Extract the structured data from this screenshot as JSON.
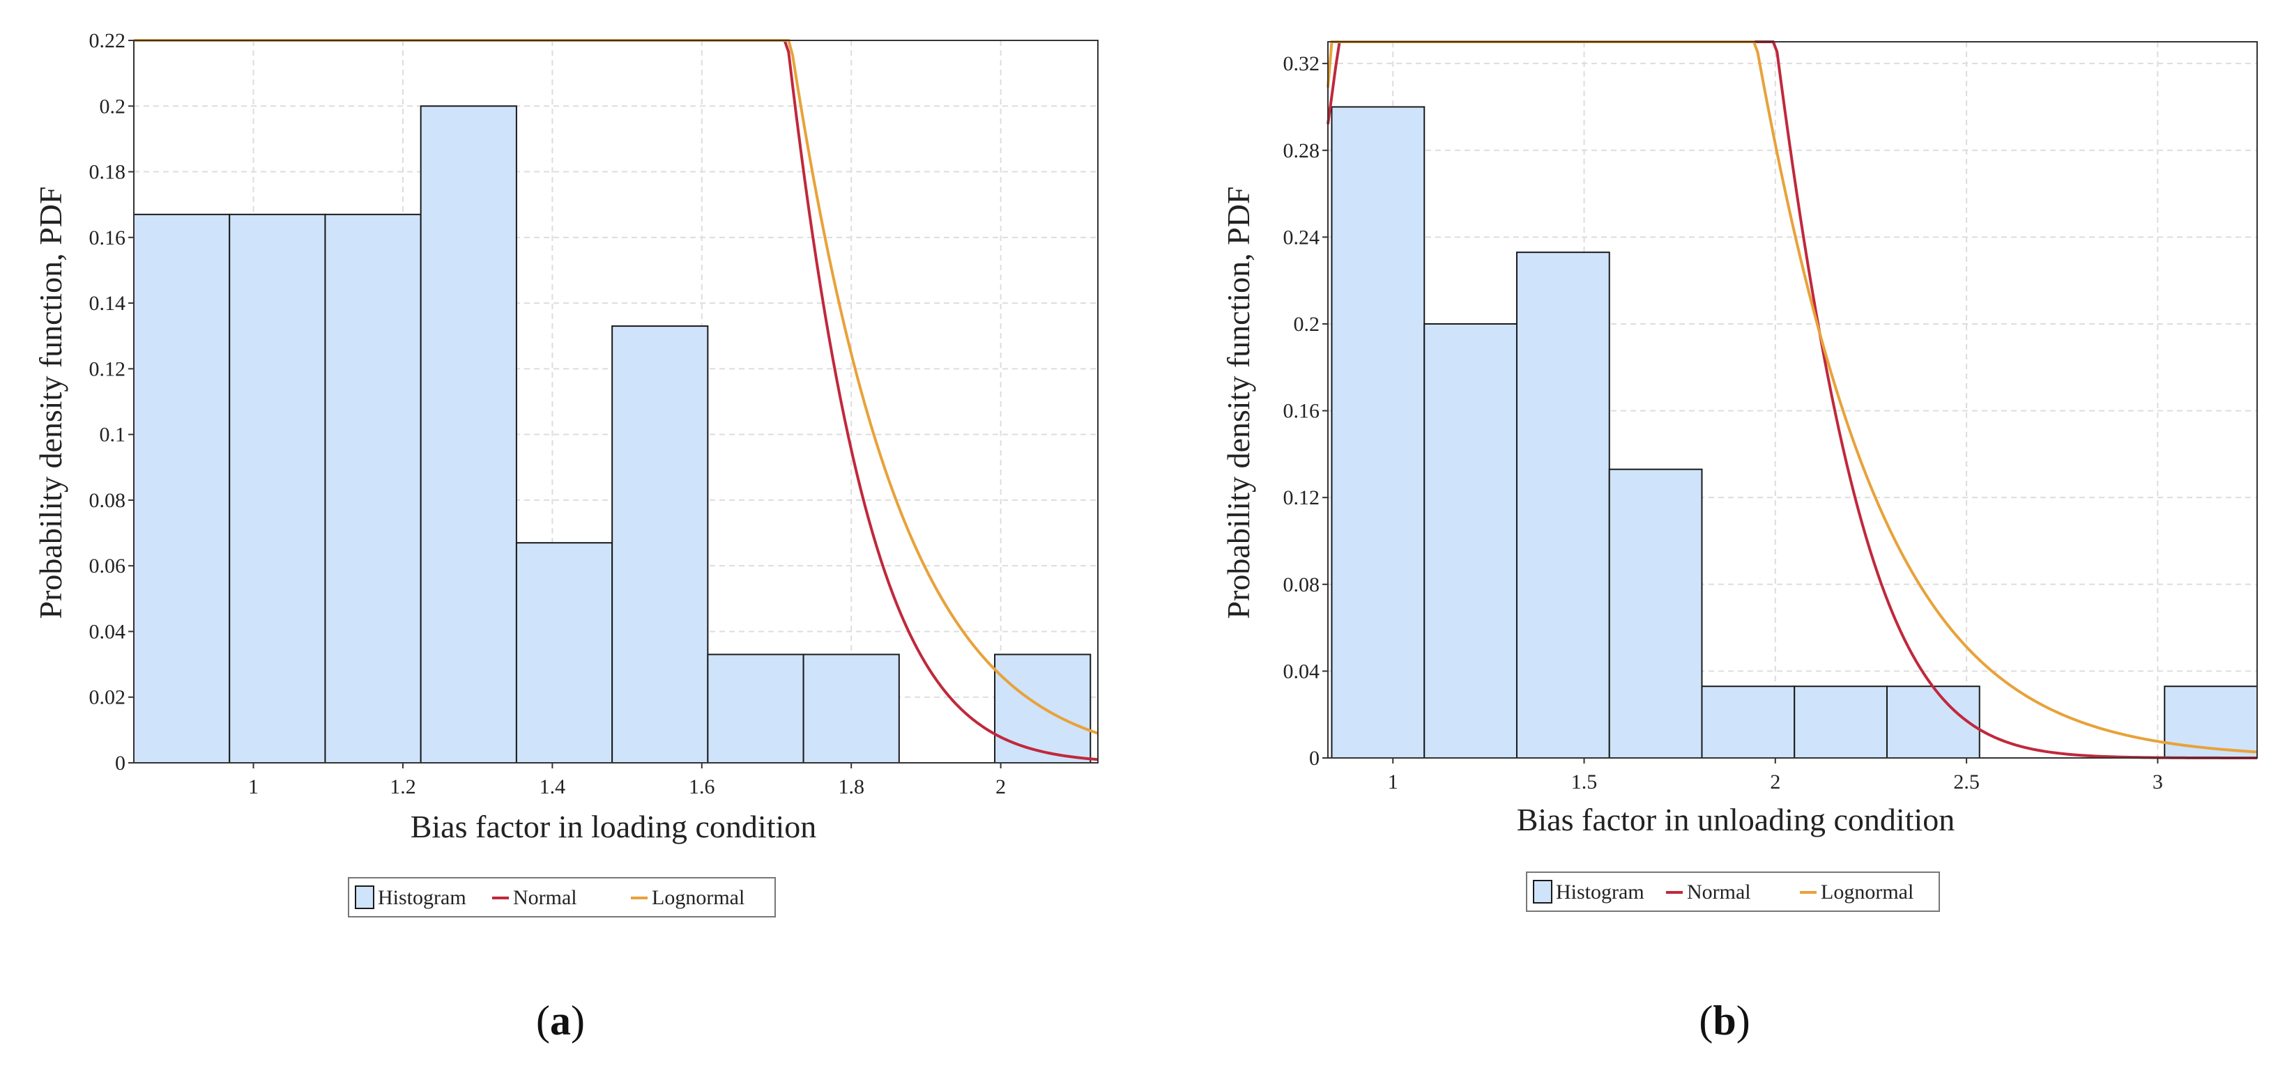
{
  "chart_data": [
    {
      "type": "bar",
      "panel": "a",
      "caption": {
        "open": "(",
        "letter": "a",
        "close": ")"
      },
      "xlabel": "Bias factor in loading condition",
      "ylabel": "Probability density function, PDF",
      "xlim": [
        0.84,
        2.13
      ],
      "ylim": [
        0,
        0.22
      ],
      "xticks": [
        1,
        1.2,
        1.4,
        1.6,
        1.8,
        2
      ],
      "xtick_labels": [
        "1",
        "1.2",
        "1.4",
        "1.6",
        "1.8",
        "2"
      ],
      "yticks": [
        0,
        0.02,
        0.04,
        0.06,
        0.08,
        0.1,
        0.12,
        0.14,
        0.16,
        0.18,
        0.2,
        0.22
      ],
      "ytick_labels": [
        "0",
        "0.02",
        "0.04",
        "0.06",
        "0.08",
        "0.1",
        "0.12",
        "0.14",
        "0.16",
        "0.18",
        "0.2",
        "0.22"
      ],
      "histogram": {
        "bin_edges": [
          0.84,
          0.968,
          1.096,
          1.224,
          1.352,
          1.48,
          1.608,
          1.736,
          1.864,
          1.992,
          2.12
        ],
        "values": [
          0.167,
          0.167,
          0.167,
          0.2,
          0.067,
          0.133,
          0.033,
          0.033,
          0.0,
          0.033
        ]
      },
      "series": [
        {
          "name": "Normal",
          "color": "#c0283c",
          "mean": 1.25,
          "sd": 0.228
        },
        {
          "name": "Lognormal",
          "color": "#e8a23a",
          "mu": 0.2045,
          "sigma": 0.1788
        }
      ],
      "legend": {
        "placement": "bottom-center",
        "labels": [
          "Histogram",
          "Normal",
          "Lognormal"
        ]
      }
    },
    {
      "type": "bar",
      "panel": "b",
      "caption": {
        "open": "(",
        "letter": "b",
        "close": ")"
      },
      "xlabel": "Bias factor in unloading condition",
      "ylabel": "Probability density function, PDF",
      "xlim": [
        0.83,
        3.26
      ],
      "ylim": [
        0,
        0.33
      ],
      "xticks": [
        1,
        1.5,
        2,
        2.5,
        3
      ],
      "xtick_labels": [
        "1",
        "1.5",
        "2",
        "2.5",
        "3"
      ],
      "yticks": [
        0,
        0.04,
        0.08,
        0.12,
        0.16,
        0.2,
        0.24,
        0.28,
        0.32
      ],
      "ytick_labels": [
        "0",
        "0.04",
        "0.08",
        "0.12",
        "0.16",
        "0.2",
        "0.24",
        "0.28",
        "0.32"
      ],
      "histogram": {
        "bin_edges": [
          0.84,
          1.082,
          1.324,
          1.566,
          1.808,
          2.05,
          2.292,
          2.534,
          2.776,
          3.018,
          3.26
        ],
        "values": [
          0.3,
          0.2,
          0.233,
          0.133,
          0.033,
          0.033,
          0.033,
          0.0,
          0.0,
          0.033
        ]
      },
      "series": [
        {
          "name": "Normal",
          "color": "#c0283c",
          "mean": 1.43,
          "sd": 0.372
        },
        {
          "name": "Lognormal",
          "color": "#e8a23a",
          "mu": 0.319,
          "sigma": 0.27
        }
      ],
      "legend": {
        "placement": "bottom-center",
        "labels": [
          "Histogram",
          "Normal",
          "Lognormal"
        ]
      }
    }
  ],
  "colors": {
    "bar_fill": "#cfe3fb",
    "bar_stroke": "#1a1a1a",
    "grid": "#dddddd",
    "axis": "#333333"
  }
}
